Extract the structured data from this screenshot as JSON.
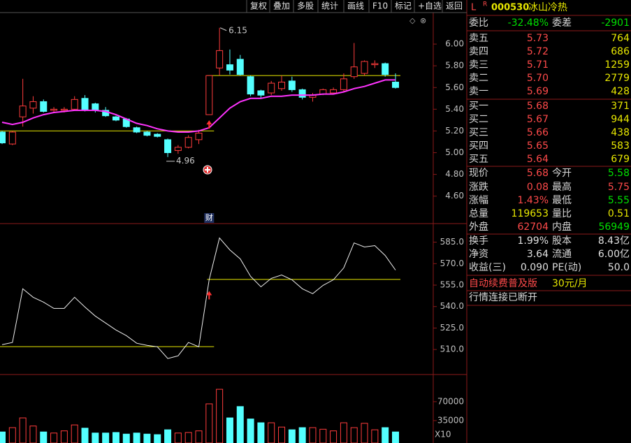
{
  "toolbar": [
    "复权",
    "叠加",
    "多股",
    "统计",
    "画线",
    "F10",
    "标记",
    "+自选",
    "返回"
  ],
  "stock": {
    "flag": "L",
    "market": "R",
    "code": "000530",
    "name": "冰山冷热"
  },
  "quote": {
    "price_color": "#ff4a4a",
    "volume_color": "#e8e800",
    "committee": [
      {
        "label": "委比",
        "value": "-32.48%",
        "color": "#00e000"
      },
      {
        "label": "委差",
        "value": "-2901",
        "color": "#00e000"
      }
    ],
    "asks": [
      {
        "label": "卖五",
        "price": "5.73",
        "volume": "764"
      },
      {
        "label": "卖四",
        "price": "5.72",
        "volume": "686"
      },
      {
        "label": "卖三",
        "price": "5.71",
        "volume": "1259"
      },
      {
        "label": "卖二",
        "price": "5.70",
        "volume": "2779"
      },
      {
        "label": "卖一",
        "price": "5.69",
        "volume": "428"
      }
    ],
    "bids": [
      {
        "label": "买一",
        "price": "5.68",
        "volume": "371"
      },
      {
        "label": "买二",
        "price": "5.67",
        "volume": "944"
      },
      {
        "label": "买三",
        "price": "5.66",
        "volume": "438"
      },
      {
        "label": "买四",
        "price": "5.65",
        "volume": "583"
      },
      {
        "label": "买五",
        "price": "5.64",
        "volume": "679"
      }
    ],
    "stats": [
      [
        {
          "label": "现价",
          "value": "5.68",
          "color": "#ff4a4a"
        },
        {
          "label": "今开",
          "value": "5.58",
          "color": "#00e000"
        }
      ],
      [
        {
          "label": "涨跌",
          "value": "0.08",
          "color": "#ff4a4a"
        },
        {
          "label": "最高",
          "value": "5.75",
          "color": "#ff4a4a"
        }
      ],
      [
        {
          "label": "涨幅",
          "value": "1.43%",
          "color": "#ff4a4a"
        },
        {
          "label": "最低",
          "value": "5.55",
          "color": "#00e000"
        }
      ],
      [
        {
          "label": "总量",
          "value": "119653",
          "color": "#e8e800"
        },
        {
          "label": "量比",
          "value": "0.51",
          "color": "#e8e800"
        }
      ],
      [
        {
          "label": "外盘",
          "value": "62704",
          "color": "#ff4a4a"
        },
        {
          "label": "内盘",
          "value": "56949",
          "color": "#00e000"
        }
      ],
      [
        {
          "label": "换手",
          "value": "1.99%",
          "color": "#e0e0e0"
        },
        {
          "label": "股本",
          "value": "8.43亿",
          "color": "#e0e0e0"
        }
      ],
      [
        {
          "label": "净资",
          "value": "3.64",
          "color": "#e0e0e0"
        },
        {
          "label": "流通",
          "value": "6.00亿",
          "color": "#e0e0e0"
        }
      ],
      [
        {
          "label": "收益(三)",
          "value": "0.090",
          "color": "#e0e0e0"
        },
        {
          "label": "PE(动)",
          "value": "50.0",
          "color": "#e0e0e0"
        }
      ]
    ]
  },
  "footer": {
    "promo": "自动续费普及版",
    "price": "30元/月",
    "status": "行情连接已断开"
  },
  "chart_data": [
    {
      "type": "candlestick",
      "up_color": "#ff3c3c",
      "down_color": "#54ffff",
      "open": [
        5.19,
        5.08,
        5.33,
        5.41,
        5.47,
        5.39,
        5.39,
        5.4,
        5.5,
        5.45,
        5.39,
        5.33,
        5.31,
        5.23,
        5.19,
        5.17,
        5.12,
        5.02,
        5.05,
        5.12,
        5.35,
        5.78,
        5.81,
        5.86,
        5.7,
        5.57,
        5.55,
        5.59,
        5.66,
        5.58,
        5.51,
        5.54,
        5.55,
        5.58,
        5.7,
        5.73,
        5.81,
        5.82,
        5.65
      ],
      "high": [
        5.2,
        5.2,
        5.68,
        5.52,
        5.49,
        5.42,
        5.42,
        5.52,
        5.53,
        5.46,
        5.42,
        5.34,
        5.32,
        5.24,
        5.2,
        5.18,
        5.13,
        5.07,
        5.16,
        5.21,
        5.71,
        6.15,
        5.95,
        5.9,
        5.71,
        5.58,
        5.66,
        5.71,
        5.7,
        5.59,
        5.55,
        5.59,
        5.6,
        5.73,
        6.01,
        5.85,
        5.85,
        5.83,
        5.73
      ],
      "low": [
        5.08,
        5.07,
        5.24,
        5.36,
        5.37,
        5.37,
        5.37,
        5.39,
        5.38,
        5.37,
        5.33,
        5.29,
        5.23,
        5.18,
        5.15,
        5.14,
        4.96,
        4.99,
        5.04,
        5.08,
        5.35,
        5.71,
        5.72,
        5.71,
        5.52,
        5.5,
        5.53,
        5.57,
        5.56,
        5.49,
        5.47,
        5.53,
        5.54,
        5.56,
        5.68,
        5.71,
        5.78,
        5.7,
        5.59
      ],
      "close": [
        5.09,
        5.19,
        5.43,
        5.47,
        5.38,
        5.4,
        5.4,
        5.49,
        5.39,
        5.39,
        5.34,
        5.3,
        5.24,
        5.19,
        5.16,
        5.15,
        5.0,
        5.05,
        5.14,
        5.18,
        5.71,
        5.94,
        5.76,
        5.72,
        5.54,
        5.53,
        5.64,
        5.65,
        5.58,
        5.51,
        5.53,
        5.58,
        5.58,
        5.68,
        5.79,
        5.84,
        5.82,
        5.72,
        5.6
      ],
      "series": [
        {
          "color": "#ff33ff",
          "values": [
            5.28,
            5.26,
            5.28,
            5.32,
            5.35,
            5.37,
            5.38,
            5.39,
            5.39,
            5.39,
            5.38,
            5.35,
            5.31,
            5.27,
            5.25,
            5.22,
            5.2,
            5.19,
            5.19,
            5.2,
            5.23,
            5.32,
            5.41,
            5.47,
            5.5,
            5.5,
            5.52,
            5.52,
            5.53,
            5.53,
            5.53,
            5.54,
            5.54,
            5.56,
            5.59,
            5.61,
            5.64,
            5.67,
            5.67
          ]
        }
      ],
      "levels": [
        {
          "value": 5.2,
          "from": 0,
          "to": 20,
          "color": "#e8e800"
        },
        {
          "value": 5.71,
          "from": 20,
          "to": 38,
          "color": "#e8e800"
        }
      ],
      "annotations": [
        {
          "text": "6.15",
          "index": 21,
          "at": "high"
        },
        {
          "text": "4.96",
          "index": 16,
          "at": "low"
        },
        {
          "text": "财",
          "index": 20,
          "at": "bottom"
        }
      ],
      "ylim": [
        4.36,
        6.29
      ],
      "yticks": [
        {
          "value": 4.6,
          "label": "4.60"
        },
        {
          "value": 4.8,
          "label": "4.80"
        },
        {
          "value": 5.0,
          "label": "5.00"
        },
        {
          "value": 5.2,
          "label": "5.20"
        },
        {
          "value": 5.4,
          "label": "5.40"
        },
        {
          "value": 5.6,
          "label": "5.60"
        },
        {
          "value": 5.8,
          "label": "5.80"
        },
        {
          "value": 6.0,
          "label": "6.00"
        }
      ]
    },
    {
      "type": "line",
      "color": "#f0f0f0",
      "values": [
        513.4,
        514.9,
        552.4,
        546.5,
        543.1,
        538.7,
        538.7,
        546.5,
        539.7,
        533.4,
        528.5,
        523.6,
        519.7,
        514.4,
        512.9,
        511.9,
        503.7,
        505.6,
        514.9,
        511.9,
        558.7,
        587.9,
        579.6,
        573.3,
        561.1,
        553.8,
        559.7,
        562.1,
        558.7,
        552.4,
        549.0,
        554.8,
        558.7,
        567.0,
        584.5,
        581.6,
        582.6,
        575.7,
        565.5
      ],
      "levels": [
        {
          "value": 512,
          "from": 0,
          "to": 20,
          "color": "#e8e800"
        },
        {
          "value": 559,
          "from": 20,
          "to": 38,
          "color": "#e8e800"
        }
      ],
      "ylim": [
        493,
        597
      ],
      "yticks": [
        {
          "value": 510,
          "label": "510.0"
        },
        {
          "value": 525,
          "label": "525.0"
        },
        {
          "value": 540,
          "label": "540.0"
        },
        {
          "value": 555,
          "label": "555.0"
        },
        {
          "value": 570,
          "label": "570.0"
        },
        {
          "value": 585,
          "label": "585.0"
        }
      ]
    },
    {
      "type": "bar",
      "values": [
        14000,
        22000,
        40000,
        25000,
        14000,
        12000,
        16000,
        27000,
        21000,
        12000,
        12000,
        13000,
        10000,
        12000,
        10000,
        9000,
        18000,
        12000,
        13000,
        16000,
        66000,
        93000,
        40000,
        61000,
        38000,
        31000,
        31000,
        23000,
        18000,
        22000,
        22000,
        19000,
        16000,
        31000,
        22000,
        30000,
        18000,
        22000,
        14000
      ],
      "multiplier_label": "X10",
      "ylim": [
        0,
        119000
      ],
      "yticks": [
        35000,
        70000
      ]
    }
  ]
}
